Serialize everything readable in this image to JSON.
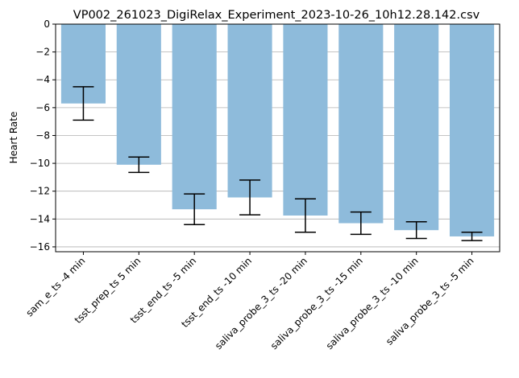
{
  "chart_data": {
    "type": "bar",
    "title": "VP002_261023_DigiRelax_Experiment_2023-10-26_10h12.28.142.csv",
    "xlabel": "",
    "ylabel": "Heart Rate",
    "ylim": [
      -16.35,
      0
    ],
    "yticks": [
      0,
      -2,
      -4,
      -6,
      -8,
      -10,
      -12,
      -14,
      -16
    ],
    "ytick_labels": [
      "0",
      "−2",
      "−4",
      "−6",
      "−8",
      "−10",
      "−12",
      "−14",
      "−16"
    ],
    "grid": "horizontal",
    "categories": [
      "sam_e_ts -4 min",
      "tsst_prep_ts 5 min",
      "tsst_end_ts -5 min",
      "tsst_end_ts -10 min",
      "saliva_probe_3_ts -20 min",
      "saliva_probe_3_ts -15 min",
      "saliva_probe_3_ts -10 min",
      "saliva_probe_3_ts -5 min"
    ],
    "values": [
      -5.7,
      -10.1,
      -13.3,
      -12.45,
      -13.75,
      -14.3,
      -14.8,
      -15.25
    ],
    "errors": [
      1.2,
      0.55,
      1.1,
      1.25,
      1.2,
      0.8,
      0.6,
      0.3
    ],
    "colors": {
      "bar": "#8ebbdb",
      "grid": "#b0b0b0",
      "error": "#000000"
    }
  }
}
